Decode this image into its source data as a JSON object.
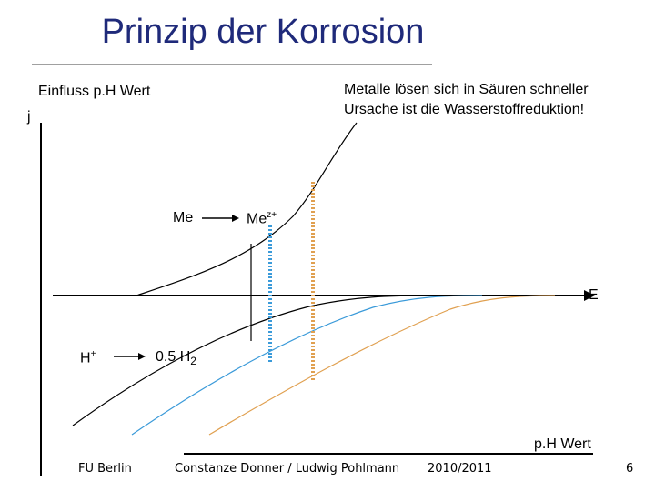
{
  "slide": {
    "title": "Prinzip der Korrosion",
    "subtitle": "Einfluss p.H Wert",
    "note_line1": "Metalle lösen sich in Säuren schneller",
    "note_line2": "Ursache ist die Wasserstoffreduktion!"
  },
  "diagram": {
    "y_axis_label": "j",
    "x_axis_label": "E",
    "ph_axis_label": "p.H Wert",
    "anodic_reactant": "Me",
    "anodic_product_base": "Me",
    "anodic_product_charge": "z+",
    "cathodic_reactant_base": "H",
    "cathodic_reactant_charge": "+",
    "cathodic_product_base": "0.5 H",
    "cathodic_product_subscript": "2",
    "colors": {
      "curve_1": "#000000",
      "curve_2": "#3a9ad9",
      "curve_3": "#e0a050",
      "marker_blue": "#3a9ad9",
      "marker_orange": "#e0a050"
    }
  },
  "footer": {
    "organization": "FU Berlin",
    "authors": "Constanze Donner / Ludwig Pohlmann",
    "year": "2010/2011",
    "page": "6"
  }
}
